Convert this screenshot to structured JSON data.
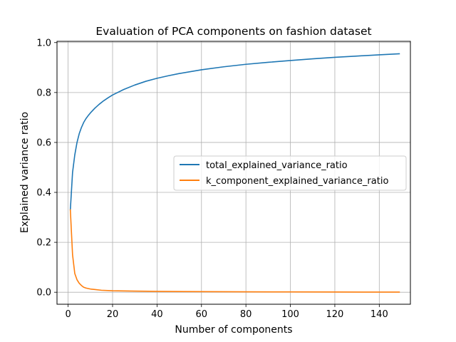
{
  "chart_data": {
    "type": "line",
    "title": "Evaluation of PCA components on fashion dataset",
    "xlabel": "Number of components",
    "ylabel": "Explained variance ratio",
    "xlim": [
      -5,
      154
    ],
    "ylim": [
      -0.048,
      1.005
    ],
    "xticks": [
      0,
      20,
      40,
      60,
      80,
      100,
      120,
      140
    ],
    "yticks": [
      0.0,
      0.2,
      0.4,
      0.6,
      0.8,
      1.0
    ],
    "ytick_labels": [
      "0.0",
      "0.2",
      "0.4",
      "0.6",
      "0.8",
      "1.0"
    ],
    "grid": true,
    "legend_position": "center-right",
    "series": [
      {
        "name": "total_explained_variance_ratio",
        "color": "#1f77b4",
        "points": [
          [
            1,
            0.33
          ],
          [
            2,
            0.48
          ],
          [
            3,
            0.55
          ],
          [
            4,
            0.6
          ],
          [
            5,
            0.635
          ],
          [
            6,
            0.66
          ],
          [
            7,
            0.68
          ],
          [
            8,
            0.695
          ],
          [
            9,
            0.707
          ],
          [
            10,
            0.718
          ],
          [
            12,
            0.737
          ],
          [
            14,
            0.753
          ],
          [
            16,
            0.767
          ],
          [
            18,
            0.779
          ],
          [
            20,
            0.79
          ],
          [
            25,
            0.812
          ],
          [
            30,
            0.83
          ],
          [
            35,
            0.845
          ],
          [
            40,
            0.857
          ],
          [
            45,
            0.867
          ],
          [
            50,
            0.876
          ],
          [
            60,
            0.891
          ],
          [
            70,
            0.903
          ],
          [
            80,
            0.913
          ],
          [
            90,
            0.921
          ],
          [
            100,
            0.928
          ],
          [
            110,
            0.935
          ],
          [
            120,
            0.941
          ],
          [
            130,
            0.946
          ],
          [
            140,
            0.951
          ],
          [
            149,
            0.955
          ]
        ]
      },
      {
        "name": "k_component_explained_variance_ratio",
        "color": "#ff7f0e",
        "points": [
          [
            1,
            0.33
          ],
          [
            2,
            0.15
          ],
          [
            3,
            0.075
          ],
          [
            4,
            0.05
          ],
          [
            5,
            0.036
          ],
          [
            6,
            0.027
          ],
          [
            7,
            0.02
          ],
          [
            8,
            0.017
          ],
          [
            10,
            0.013
          ],
          [
            12,
            0.011
          ],
          [
            15,
            0.008
          ],
          [
            20,
            0.006
          ],
          [
            30,
            0.0045
          ],
          [
            40,
            0.0035
          ],
          [
            60,
            0.0025
          ],
          [
            80,
            0.0018
          ],
          [
            100,
            0.0013
          ],
          [
            120,
            0.001
          ],
          [
            149,
            0.0006
          ]
        ]
      }
    ]
  }
}
